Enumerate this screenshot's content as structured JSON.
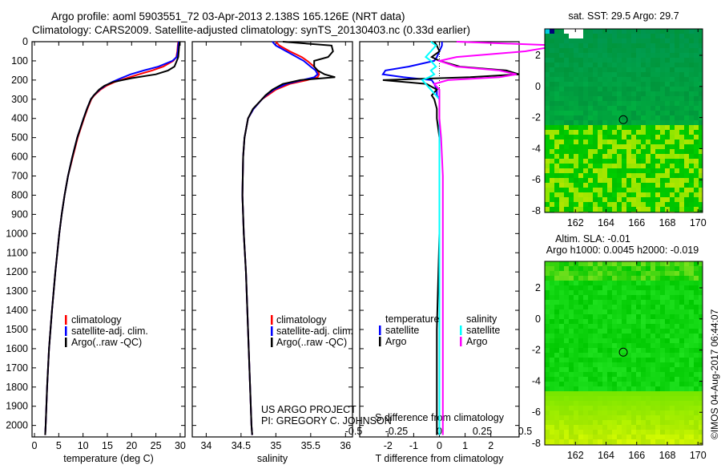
{
  "title_line1": "Argo profile: aoml 5903551_72 03-Apr-2013 2.138S 165.126E (NRT data)",
  "title_line2": "Climatology: CARS2009. Satellite-adjusted climatology: synTS_20130403.nc (0.33d earlier)",
  "credit_line1": "US ARGO PROJECT",
  "credit_line2": "PI: GREGORY C. JOHNSON",
  "side_stamp": "©IMOS 04-Aug-2017 06:44:07",
  "colors": {
    "climatology": "#ff0000",
    "satellite": "#0000ff",
    "argo": "#000000",
    "sal_sat": "#00ffff",
    "sal_argo": "#ff00ff"
  },
  "chart_data": [
    {
      "type": "line",
      "name": "temperature",
      "xlabel": "temperature (deg C)",
      "ylabel": "depth",
      "xlim": [
        -0.5,
        31
      ],
      "ylim": [
        2060,
        0
      ],
      "xticks": [
        0,
        5,
        10,
        15,
        20,
        25,
        30
      ],
      "yticks": [
        0,
        100,
        200,
        300,
        400,
        500,
        600,
        700,
        800,
        900,
        1000,
        1100,
        1200,
        1300,
        1400,
        1500,
        1600,
        1700,
        1800,
        1900,
        2000
      ],
      "legend": [
        "climatology",
        "satellite-adj. clim.",
        "Argo(..raw -QC)"
      ],
      "depth": [
        0,
        20,
        50,
        80,
        100,
        130,
        150,
        170,
        190,
        210,
        230,
        250,
        280,
        300,
        350,
        400,
        500,
        600,
        700,
        800,
        900,
        1000,
        1200,
        1400,
        1600,
        1800,
        2000,
        2050
      ],
      "series": [
        {
          "name": "climatology",
          "color": "#ff0000",
          "values": [
            29.6,
            29.5,
            29.4,
            29.2,
            28.6,
            26.5,
            24.2,
            21.5,
            19,
            16.5,
            14.8,
            13.6,
            12.3,
            11.7,
            10.9,
            10.2,
            8.9,
            7.9,
            6.9,
            6.2,
            5.6,
            5.1,
            4.3,
            3.6,
            3.0,
            2.6,
            2.3,
            2.2
          ]
        },
        {
          "name": "satellite-adj. clim.",
          "color": "#0000ff",
          "values": [
            29.7,
            29.6,
            29.5,
            29.3,
            28.4,
            25.5,
            22.5,
            19.8,
            17.8,
            16,
            14.5,
            13.4,
            12.2,
            11.6,
            10.8,
            10.1,
            8.8,
            7.8,
            6.9,
            6.2,
            5.6,
            5.1,
            4.3,
            3.6,
            3.0,
            2.6,
            2.3,
            2.2
          ]
        },
        {
          "name": "Argo(..raw -QC)",
          "color": "#000000",
          "values": [
            29.9,
            29.8,
            29.7,
            29.6,
            29.3,
            28.8,
            27.5,
            25,
            20,
            16.2,
            14.4,
            13.3,
            12.2,
            11.6,
            10.8,
            10.1,
            8.8,
            7.8,
            6.9,
            6.2,
            5.6,
            5.1,
            4.3,
            3.6,
            3.0,
            2.6,
            2.3,
            2.2
          ]
        }
      ]
    },
    {
      "type": "line",
      "name": "salinity",
      "xlabel": "salinity",
      "xlim": [
        33.8,
        36.1
      ],
      "ylim": [
        2060,
        0
      ],
      "xticks": [
        34,
        34.5,
        35,
        35.5,
        36
      ],
      "legend": [
        "climatology",
        "satellite-adj. clim.",
        "Argo(..raw -QC)"
      ],
      "depth": [
        0,
        20,
        50,
        80,
        100,
        130,
        150,
        170,
        185,
        200,
        220,
        250,
        280,
        300,
        350,
        400,
        500,
        600,
        800,
        1000,
        1200,
        1500,
        1800,
        2000,
        2050
      ],
      "series": [
        {
          "name": "climatology",
          "color": "#ff0000",
          "values": [
            35.0,
            35.05,
            35.2,
            35.37,
            35.45,
            35.55,
            35.6,
            35.62,
            35.6,
            35.45,
            35.2,
            35.0,
            34.88,
            34.8,
            34.68,
            34.6,
            34.55,
            34.53,
            34.52,
            34.54,
            34.57,
            34.6,
            34.63,
            34.65,
            34.66
          ]
        },
        {
          "name": "satellite-adj. clim.",
          "color": "#0000ff",
          "values": [
            34.95,
            35.0,
            35.15,
            35.3,
            35.4,
            35.5,
            35.57,
            35.6,
            35.55,
            35.38,
            35.15,
            34.97,
            34.86,
            34.8,
            34.68,
            34.6,
            34.55,
            34.53,
            34.52,
            34.54,
            34.57,
            34.6,
            34.63,
            34.65,
            34.66
          ]
        },
        {
          "name": "Argo(..raw -QC)",
          "color": "#000000",
          "values": [
            35.1,
            35.8,
            35.82,
            35.75,
            35.55,
            35.55,
            35.6,
            35.7,
            35.85,
            35.35,
            35.1,
            34.95,
            34.85,
            34.8,
            34.67,
            34.6,
            34.55,
            34.53,
            34.52,
            34.54,
            34.57,
            34.6,
            34.63,
            34.65,
            34.66
          ]
        }
      ]
    },
    {
      "type": "line",
      "name": "difference",
      "xlabel": "T difference from climatology",
      "x2label": "S difference from climatology",
      "xlim": [
        -3.1,
        3.1
      ],
      "ylim": [
        2060,
        0
      ],
      "xticks": [
        -2,
        -1,
        0,
        1,
        2
      ],
      "x2ticks": [
        -0.5,
        -0.25,
        0,
        0.25,
        0.5
      ],
      "legend_headers": [
        "temperature",
        "salinity"
      ],
      "legend": [
        "satellite",
        "Argo",
        "satellite",
        "Argo"
      ],
      "depth": [
        0,
        20,
        50,
        80,
        100,
        130,
        150,
        170,
        185,
        200,
        220,
        250,
        280,
        300,
        350,
        400,
        500,
        700,
        1000,
        1500,
        2000,
        2050
      ],
      "series": [
        {
          "name": "T satellite",
          "color": "#0000ff",
          "values": [
            0.1,
            0.1,
            0,
            -0.1,
            -0.2,
            -1.2,
            -2.1,
            -2.2,
            -1.4,
            -0.3,
            -0.2,
            -0.1,
            -0.1,
            0,
            0,
            0,
            0,
            0,
            0,
            0,
            0,
            0
          ]
        },
        {
          "name": "T Argo",
          "color": "#000000",
          "values": [
            -0.2,
            -0.1,
            0,
            -0.3,
            0,
            0.8,
            2.6,
            3.1,
            1.2,
            -2.2,
            -0.5,
            -0.1,
            -0.3,
            -0.2,
            -0.1,
            -0.1,
            0,
            0,
            0,
            -0.1,
            -0.1,
            -0.1
          ]
        },
        {
          "name": "S satellite",
          "color": "#00ffff",
          "values": [
            -0.05,
            -0.02,
            -0.05,
            -0.08,
            -0.05,
            -0.02,
            -0.05,
            -0.03,
            -0.06,
            -0.1,
            -0.08,
            -0.05,
            -0.02,
            0,
            0,
            0,
            0,
            0,
            0,
            0,
            0,
            0
          ]
        },
        {
          "name": "S Argo",
          "color": "#ff00ff",
          "values": [
            0.1,
            0.7,
            0.5,
            0.1,
            0,
            0.1,
            0.35,
            0.45,
            0.35,
            0.05,
            -0.03,
            0,
            0,
            0,
            0,
            0,
            0.01,
            0.02,
            0.02,
            0.02,
            0.02,
            0.02
          ]
        }
      ]
    },
    {
      "type": "heatmap",
      "name": "sst-map",
      "title": "sat. SST: 29.5 Argo: 29.7",
      "xlim": [
        160,
        170.3
      ],
      "ylim": [
        -8.1,
        3.7
      ],
      "xticks": [
        162,
        164,
        166,
        168,
        170
      ],
      "yticks": [
        -8,
        -6,
        -4,
        -2,
        0,
        2
      ],
      "argo_position": [
        165.126,
        -2.138
      ]
    },
    {
      "type": "heatmap",
      "name": "sla-map",
      "title": "Altim. SLA: -0.01",
      "subtitle": "Argo h1000: 0.0045 h2000: -0.019",
      "xlim": [
        160,
        170.3
      ],
      "ylim": [
        -8.1,
        3.7
      ],
      "xticks": [
        162,
        164,
        166,
        168,
        170
      ],
      "yticks": [
        -8,
        -6,
        -4,
        -2,
        0,
        2
      ],
      "argo_position": [
        165.126,
        -2.138
      ]
    }
  ]
}
